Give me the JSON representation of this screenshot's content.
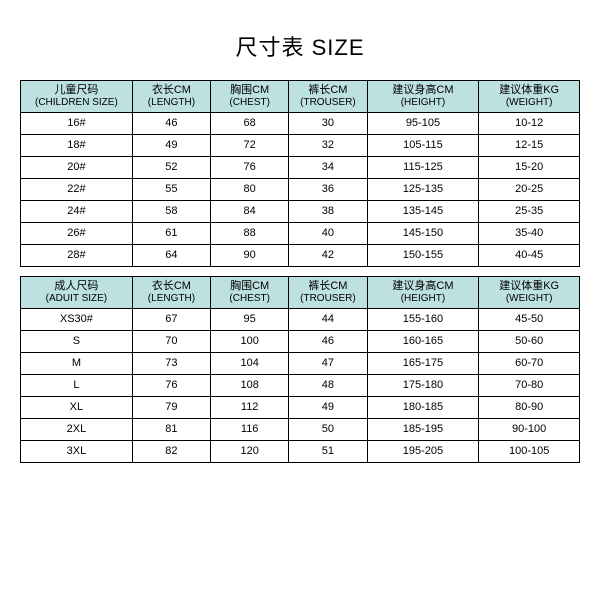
{
  "title": "尺寸表 SIZE",
  "columns_children": [
    {
      "cn": "儿童尺码",
      "en": "(CHILDREN SIZE)"
    },
    {
      "cn": "衣长CM",
      "en": "(LENGTH)"
    },
    {
      "cn": "胸围CM",
      "en": "(CHEST)"
    },
    {
      "cn": "裤长CM",
      "en": "(TROUSER)"
    },
    {
      "cn": "建议身高CM",
      "en": "(HEIGHT)"
    },
    {
      "cn": "建议体重KG",
      "en": "(WEIGHT)"
    }
  ],
  "columns_adult": [
    {
      "cn": "成人尺码",
      "en": "(ADUIT SIZE)"
    },
    {
      "cn": "衣长CM",
      "en": "(LENGTH)"
    },
    {
      "cn": "胸围CM",
      "en": "(CHEST)"
    },
    {
      "cn": "裤长CM",
      "en": "(TROUSER)"
    },
    {
      "cn": "建议身高CM",
      "en": "(HEIGHT)"
    },
    {
      "cn": "建议体重KG",
      "en": "(WEIGHT)"
    }
  ],
  "rows_children": [
    [
      "16#",
      "46",
      "68",
      "30",
      "95-105",
      "10-12"
    ],
    [
      "18#",
      "49",
      "72",
      "32",
      "105-115",
      "12-15"
    ],
    [
      "20#",
      "52",
      "76",
      "34",
      "115-125",
      "15-20"
    ],
    [
      "22#",
      "55",
      "80",
      "36",
      "125-135",
      "20-25"
    ],
    [
      "24#",
      "58",
      "84",
      "38",
      "135-145",
      "25-35"
    ],
    [
      "26#",
      "61",
      "88",
      "40",
      "145-150",
      "35-40"
    ],
    [
      "28#",
      "64",
      "90",
      "42",
      "150-155",
      "40-45"
    ]
  ],
  "rows_adult": [
    [
      "XS30#",
      "67",
      "95",
      "44",
      "155-160",
      "45-50"
    ],
    [
      "S",
      "70",
      "100",
      "46",
      "160-165",
      "50-60"
    ],
    [
      "M",
      "73",
      "104",
      "47",
      "165-175",
      "60-70"
    ],
    [
      "L",
      "76",
      "108",
      "48",
      "175-180",
      "70-80"
    ],
    [
      "XL",
      "79",
      "112",
      "49",
      "180-185",
      "80-90"
    ],
    [
      "2XL",
      "81",
      "116",
      "50",
      "185-195",
      "90-100"
    ],
    [
      "3XL",
      "82",
      "120",
      "51",
      "195-205",
      "100-105"
    ]
  ],
  "style": {
    "header_bg": "#bde0e0",
    "border_color": "#000000",
    "col_widths_pct": [
      20,
      14,
      14,
      14,
      20,
      18
    ]
  }
}
